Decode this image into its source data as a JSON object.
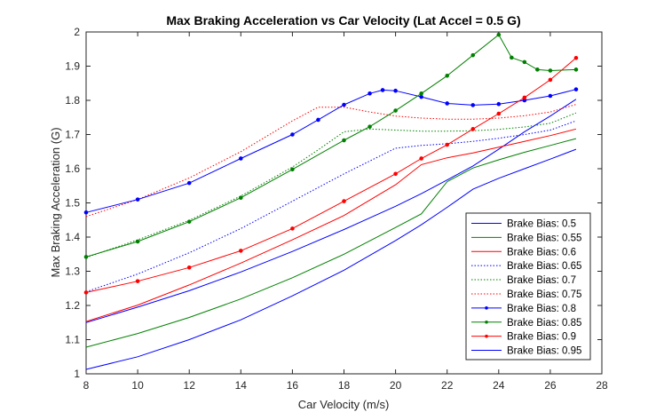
{
  "chart_data": {
    "type": "line",
    "title": "Max Braking Acceleration vs Car Velocity (Lat Accel = 0.5 G)",
    "xlabel": "Car Velocity (m/s)",
    "ylabel": "Max Braking Acceleration (G)",
    "xlim": [
      8,
      28
    ],
    "ylim": [
      1,
      2
    ],
    "xticks": [
      8,
      10,
      12,
      14,
      16,
      18,
      20,
      22,
      24,
      26,
      28
    ],
    "yticks": [
      1,
      1.1,
      1.2,
      1.3,
      1.4,
      1.5,
      1.6,
      1.7,
      1.8,
      1.9,
      2
    ],
    "grid": false,
    "legend_position": "bottom-right",
    "series": [
      {
        "name": "Brake Bias:  0.5",
        "color": "#0000ff",
        "style": "solid",
        "marker": false,
        "x": [
          8,
          10,
          12,
          14,
          16,
          18,
          20,
          21,
          22,
          23,
          24,
          25,
          26,
          27
        ],
        "y": [
          1.15,
          1.195,
          1.243,
          1.298,
          1.358,
          1.422,
          1.49,
          1.527,
          1.567,
          1.608,
          1.657,
          1.708,
          1.754,
          1.803
        ]
      },
      {
        "name": "Brake Bias:  0.55",
        "color": "#008000",
        "style": "solid",
        "marker": false,
        "x": [
          8,
          10,
          12,
          14,
          16,
          18,
          20,
          21,
          22,
          23,
          24,
          25,
          26,
          27
        ],
        "y": [
          1.078,
          1.118,
          1.165,
          1.219,
          1.281,
          1.35,
          1.428,
          1.468,
          1.562,
          1.602,
          1.626,
          1.648,
          1.668,
          1.688
        ]
      },
      {
        "name": "Brake Bias:  0.6",
        "color": "#ff0000",
        "style": "solid",
        "marker": false,
        "x": [
          8,
          10,
          12,
          14,
          16,
          18,
          20,
          21,
          22,
          23,
          24,
          25,
          26,
          27
        ],
        "y": [
          1.153,
          1.201,
          1.26,
          1.324,
          1.392,
          1.463,
          1.553,
          1.612,
          1.632,
          1.646,
          1.663,
          1.68,
          1.697,
          1.716
        ]
      },
      {
        "name": "Brake Bias:  0.65",
        "color": "#0000ff",
        "style": "dotted",
        "marker": false,
        "x": [
          8,
          10,
          12,
          14,
          16,
          18,
          20,
          21,
          22,
          23,
          24,
          25,
          26,
          27
        ],
        "y": [
          1.24,
          1.292,
          1.354,
          1.425,
          1.505,
          1.585,
          1.66,
          1.668,
          1.673,
          1.68,
          1.689,
          1.7,
          1.713,
          1.74
        ]
      },
      {
        "name": "Brake Bias:  0.7",
        "color": "#008000",
        "style": "dotted",
        "marker": false,
        "x": [
          8,
          10,
          12,
          14,
          16,
          17,
          18,
          19,
          20,
          21,
          22,
          23,
          24,
          25,
          26,
          27
        ],
        "y": [
          1.34,
          1.392,
          1.449,
          1.52,
          1.605,
          1.655,
          1.708,
          1.716,
          1.713,
          1.71,
          1.71,
          1.711,
          1.715,
          1.722,
          1.733,
          1.763
        ]
      },
      {
        "name": "Brake Bias:  0.75",
        "color": "#ff0000",
        "style": "dotted",
        "marker": false,
        "x": [
          8,
          10,
          12,
          14,
          16,
          17,
          18,
          19,
          20,
          21,
          22,
          23,
          24,
          25,
          26,
          27
        ],
        "y": [
          1.46,
          1.51,
          1.573,
          1.65,
          1.74,
          1.78,
          1.78,
          1.766,
          1.754,
          1.748,
          1.745,
          1.745,
          1.748,
          1.755,
          1.766,
          1.788
        ]
      },
      {
        "name": "Brake Bias:  0.8",
        "color": "#0000ff",
        "style": "solid",
        "marker": true,
        "x": [
          8,
          10,
          12,
          14,
          16,
          17,
          18,
          19,
          19.5,
          20,
          21,
          22,
          23,
          24,
          25,
          26,
          27
        ],
        "y": [
          1.472,
          1.51,
          1.558,
          1.63,
          1.7,
          1.743,
          1.787,
          1.82,
          1.83,
          1.828,
          1.81,
          1.791,
          1.786,
          1.789,
          1.8,
          1.813,
          1.832
        ]
      },
      {
        "name": "Brake Bias:  0.85",
        "color": "#008000",
        "style": "solid",
        "marker": true,
        "x": [
          8,
          10,
          12,
          14,
          16,
          18,
          19,
          20,
          21,
          22,
          23,
          24,
          24.5,
          25,
          25.5,
          26,
          27
        ],
        "y": [
          1.342,
          1.387,
          1.445,
          1.515,
          1.598,
          1.683,
          1.723,
          1.77,
          1.82,
          1.872,
          1.932,
          1.992,
          1.925,
          1.912,
          1.89,
          1.887,
          1.89
        ]
      },
      {
        "name": "Brake Bias:  0.9",
        "color": "#ff0000",
        "style": "solid",
        "marker": true,
        "x": [
          8,
          10,
          12,
          14,
          16,
          18,
          20,
          21,
          22,
          23,
          24,
          25,
          26,
          27
        ],
        "y": [
          1.238,
          1.271,
          1.311,
          1.36,
          1.425,
          1.505,
          1.585,
          1.63,
          1.67,
          1.716,
          1.761,
          1.808,
          1.86,
          1.924
        ]
      },
      {
        "name": "Brake Bias:  0.95",
        "color": "#0000ff",
        "style": "solid",
        "marker": false,
        "x": [
          8,
          10,
          12,
          14,
          16,
          18,
          20,
          21,
          22,
          23,
          24,
          25,
          26,
          27
        ],
        "y": [
          1.013,
          1.05,
          1.1,
          1.158,
          1.228,
          1.303,
          1.39,
          1.436,
          1.487,
          1.54,
          1.572,
          1.6,
          1.628,
          1.657
        ]
      }
    ]
  }
}
